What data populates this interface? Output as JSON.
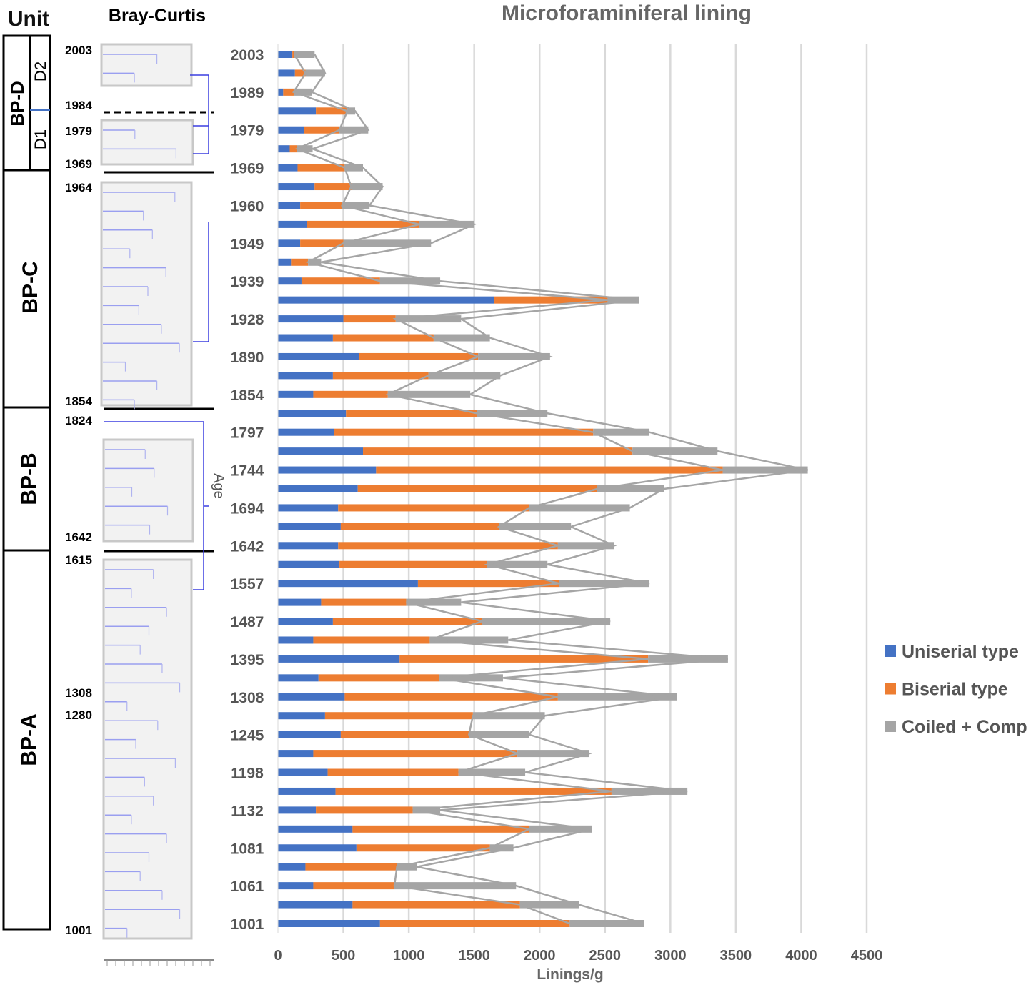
{
  "left_panel": {
    "unit_header": "Unit",
    "dendrogram_title": "Bray-Curtis",
    "units": [
      "BP-D",
      "BP-C",
      "BP-B",
      "BP-A"
    ],
    "subunits": [
      "D2",
      "D1"
    ],
    "dendrogram_ages": [
      "2003",
      "1984",
      "1979",
      "1969",
      "1964",
      "1854",
      "1824",
      "1642",
      "1615",
      "1308",
      "1280",
      "1001"
    ],
    "age_axis_title": "Age"
  },
  "chart_data": {
    "type": "bar",
    "orientation": "horizontal-stacked",
    "title": "Microforaminiferal lining",
    "xlabel": "Linings/g",
    "ylabel": "Age",
    "xlim": [
      0,
      4500
    ],
    "xticks": [
      0,
      500,
      1000,
      1500,
      2000,
      2500,
      3000,
      3500,
      4000,
      4500
    ],
    "grid": true,
    "legend_position": "right",
    "categories": [
      "2003",
      "",
      "1989",
      "",
      "1979",
      "",
      "1969",
      "",
      "1960",
      "",
      "1949",
      "",
      "1939",
      "",
      "1928",
      "",
      "1890",
      "",
      "1854",
      "",
      "1797",
      "",
      "1744",
      "",
      "1694",
      "",
      "1642",
      "",
      "1557",
      "",
      "1487",
      "",
      "1395",
      "",
      "1308",
      "",
      "1245",
      "",
      "1198",
      "",
      "1132",
      "",
      "1081",
      "",
      "1061",
      "",
      "1001"
    ],
    "series": [
      {
        "name": "Uniserial type",
        "color": "#4472c4",
        "values": [
          110,
          130,
          40,
          290,
          200,
          90,
          150,
          280,
          170,
          220,
          170,
          100,
          180,
          1650,
          500,
          420,
          620,
          420,
          270,
          520,
          430,
          650,
          750,
          610,
          460,
          480,
          460,
          470,
          1070,
          330,
          420,
          270,
          930,
          310,
          510,
          360,
          480,
          270,
          380,
          440,
          290,
          570,
          600,
          210,
          270,
          570,
          780
        ]
      },
      {
        "name": "Biserial type",
        "color": "#ed7d31",
        "values": [
          15,
          80,
          80,
          240,
          270,
          55,
          360,
          280,
          320,
          860,
          330,
          130,
          600,
          870,
          400,
          770,
          910,
          730,
          570,
          1000,
          1980,
          2060,
          2650,
          1830,
          1460,
          1210,
          1680,
          1130,
          1080,
          650,
          1140,
          890,
          1900,
          920,
          1630,
          1130,
          980,
          1560,
          1000,
          2110,
          740,
          1350,
          1020,
          700,
          620,
          1280,
          1450
        ]
      },
      {
        "name": "Coiled + Comp",
        "color": "#a5a5a5",
        "values": [
          155,
          150,
          140,
          60,
          220,
          120,
          140,
          240,
          210,
          420,
          670,
          100,
          460,
          240,
          500,
          430,
          550,
          550,
          630,
          540,
          430,
          650,
          650,
          510,
          770,
          550,
          430,
          460,
          690,
          420,
          980,
          600,
          610,
          490,
          910,
          550,
          460,
          550,
          510,
          580,
          210,
          480,
          180,
          150,
          930,
          450,
          570
        ]
      }
    ]
  }
}
